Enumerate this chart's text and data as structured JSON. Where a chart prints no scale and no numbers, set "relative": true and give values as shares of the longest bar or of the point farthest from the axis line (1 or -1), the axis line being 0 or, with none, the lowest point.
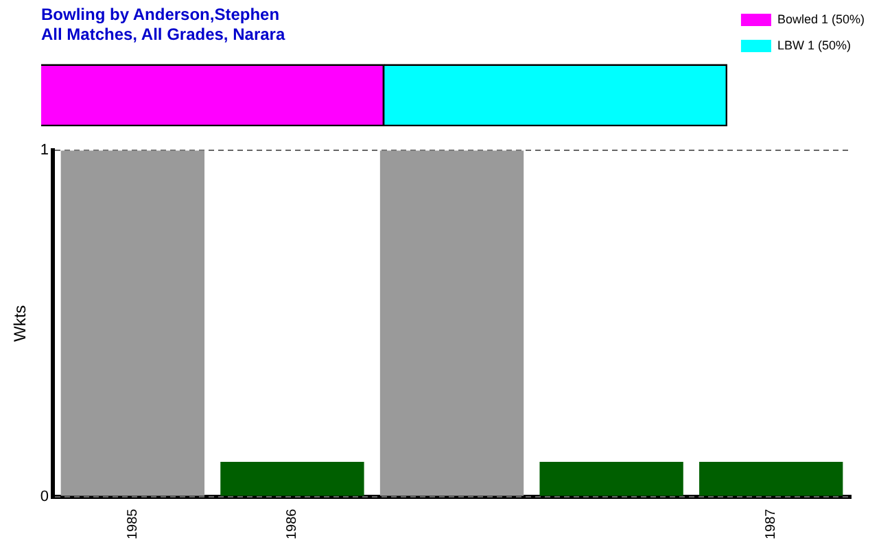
{
  "chart_data": [
    {
      "type": "bar",
      "title": "Bowling by Anderson,Stephen",
      "subtitle": "All Matches, All Grades, Narara",
      "orientation": "horizontal",
      "stacked": true,
      "relative": true,
      "categories": [
        null
      ],
      "legend": "top right",
      "series": [
        {
          "name": "Bowled 1 (50%)",
          "color": "#ff00ff",
          "values": [
            0.5
          ]
        },
        {
          "name": "LBW 1 (50%)",
          "color": "#00ffff",
          "values": [
            0.5
          ]
        }
      ]
    },
    {
      "type": "bar",
      "ylabel": "Wkts",
      "categories": [
        "1985",
        "1986",
        null,
        null,
        "1987"
      ],
      "values": [
        1,
        0.1,
        1,
        0.1,
        0.1
      ],
      "colors": [
        "#9a9a9a",
        "#005f00",
        "#9a9a9a",
        "#005f00",
        "#005f00"
      ],
      "ylim": [
        0,
        1
      ],
      "yticks": [
        0,
        1
      ],
      "grid": "y",
      "line_style": "dashed"
    }
  ]
}
